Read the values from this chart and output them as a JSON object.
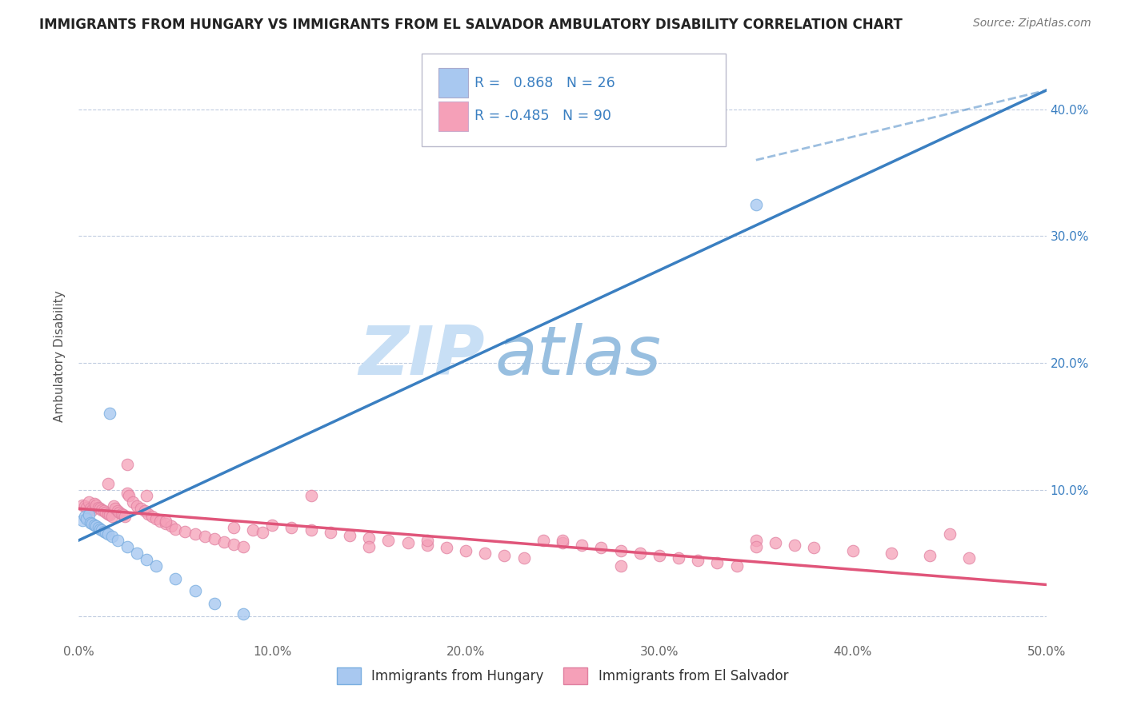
{
  "title": "IMMIGRANTS FROM HUNGARY VS IMMIGRANTS FROM EL SALVADOR AMBULATORY DISABILITY CORRELATION CHART",
  "source": "Source: ZipAtlas.com",
  "ylabel": "Ambulatory Disability",
  "xlim": [
    0.0,
    0.5
  ],
  "ylim": [
    -0.02,
    0.43
  ],
  "xticks": [
    0.0,
    0.1,
    0.2,
    0.3,
    0.4,
    0.5
  ],
  "xticklabels": [
    "0.0%",
    "10.0%",
    "20.0%",
    "30.0%",
    "40.0%",
    "50.0%"
  ],
  "yticks": [
    0.0,
    0.1,
    0.2,
    0.3,
    0.4
  ],
  "yticklabels_right": [
    "",
    "10.0%",
    "20.0%",
    "30.0%",
    "40.0%"
  ],
  "hungary_R": 0.868,
  "hungary_N": 26,
  "elsalvador_R": -0.485,
  "elsalvador_N": 90,
  "hungary_color": "#a8c8f0",
  "hungary_edge_color": "#7aaee0",
  "elsalvador_color": "#f5a0b8",
  "elsalvador_edge_color": "#e080a0",
  "hungary_line_color": "#3a7fc1",
  "elsalvador_line_color": "#e0557a",
  "watermark_zip_color": "#c8dff5",
  "watermark_atlas_color": "#98bfe0",
  "grid_color": "#d0d8e8",
  "grid_dash_color": "#c0cce0",
  "background_color": "#ffffff",
  "hungary_line_x0": 0.0,
  "hungary_line_y0": 0.06,
  "hungary_line_x1": 0.5,
  "hungary_line_y1": 0.415,
  "elsalvador_line_x0": 0.0,
  "elsalvador_line_y0": 0.085,
  "elsalvador_line_x1": 0.5,
  "elsalvador_line_y1": 0.025,
  "hungary_x": [
    0.002,
    0.003,
    0.004,
    0.005,
    0.006,
    0.007,
    0.008,
    0.009,
    0.01,
    0.011,
    0.012,
    0.013,
    0.014,
    0.015,
    0.016,
    0.017,
    0.02,
    0.025,
    0.03,
    0.035,
    0.04,
    0.05,
    0.06,
    0.07,
    0.085,
    0.35
  ],
  "hungary_y": [
    0.076,
    0.079,
    0.077,
    0.08,
    0.074,
    0.073,
    0.072,
    0.071,
    0.07,
    0.069,
    0.068,
    0.067,
    0.066,
    0.065,
    0.16,
    0.063,
    0.06,
    0.055,
    0.05,
    0.045,
    0.04,
    0.03,
    0.02,
    0.01,
    0.002,
    0.325
  ],
  "elsalvador_x": [
    0.002,
    0.003,
    0.004,
    0.005,
    0.006,
    0.007,
    0.008,
    0.009,
    0.01,
    0.011,
    0.012,
    0.013,
    0.014,
    0.015,
    0.016,
    0.017,
    0.018,
    0.019,
    0.02,
    0.021,
    0.022,
    0.023,
    0.024,
    0.025,
    0.026,
    0.028,
    0.03,
    0.032,
    0.034,
    0.036,
    0.038,
    0.04,
    0.042,
    0.045,
    0.048,
    0.05,
    0.055,
    0.06,
    0.065,
    0.07,
    0.075,
    0.08,
    0.085,
    0.09,
    0.095,
    0.1,
    0.11,
    0.12,
    0.13,
    0.14,
    0.15,
    0.16,
    0.17,
    0.18,
    0.19,
    0.2,
    0.21,
    0.22,
    0.23,
    0.24,
    0.25,
    0.26,
    0.27,
    0.28,
    0.29,
    0.3,
    0.31,
    0.32,
    0.33,
    0.34,
    0.35,
    0.36,
    0.37,
    0.38,
    0.4,
    0.42,
    0.44,
    0.46,
    0.015,
    0.025,
    0.035,
    0.045,
    0.12,
    0.18,
    0.25,
    0.35,
    0.45,
    0.28,
    0.15,
    0.08
  ],
  "elsalvador_y": [
    0.088,
    0.087,
    0.086,
    0.09,
    0.085,
    0.084,
    0.089,
    0.088,
    0.086,
    0.085,
    0.084,
    0.083,
    0.082,
    0.081,
    0.08,
    0.079,
    0.087,
    0.085,
    0.083,
    0.082,
    0.081,
    0.08,
    0.079,
    0.097,
    0.095,
    0.09,
    0.087,
    0.085,
    0.083,
    0.081,
    0.079,
    0.077,
    0.075,
    0.073,
    0.071,
    0.069,
    0.067,
    0.065,
    0.063,
    0.061,
    0.059,
    0.057,
    0.055,
    0.068,
    0.066,
    0.072,
    0.07,
    0.068,
    0.066,
    0.064,
    0.062,
    0.06,
    0.058,
    0.056,
    0.054,
    0.052,
    0.05,
    0.048,
    0.046,
    0.06,
    0.058,
    0.056,
    0.054,
    0.052,
    0.05,
    0.048,
    0.046,
    0.044,
    0.042,
    0.04,
    0.06,
    0.058,
    0.056,
    0.054,
    0.052,
    0.05,
    0.048,
    0.046,
    0.105,
    0.12,
    0.095,
    0.075,
    0.095,
    0.06,
    0.06,
    0.055,
    0.065,
    0.04,
    0.055,
    0.07
  ]
}
